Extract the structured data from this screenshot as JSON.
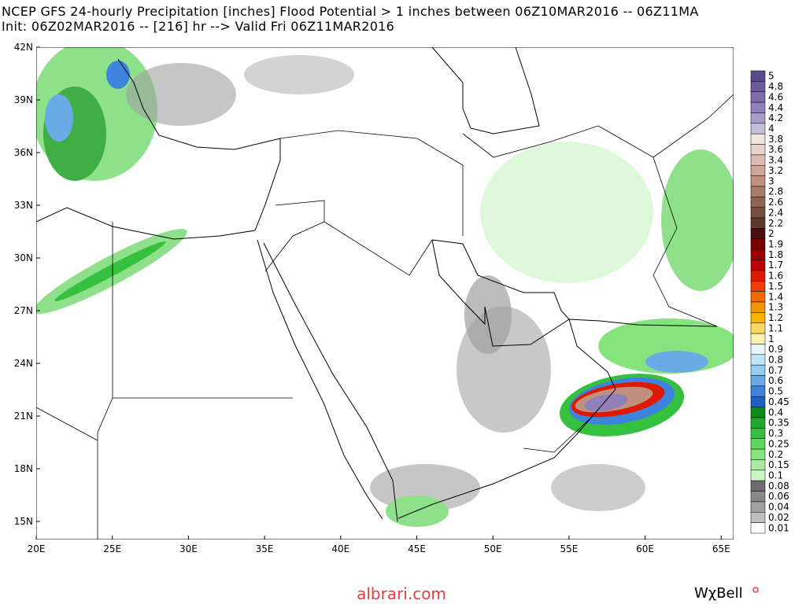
{
  "header": {
    "title": "NCEP GFS 24-hourly Precipitation [inches] Flood Potential > 1 inches between 06Z10MAR2016 -- 06Z11MA",
    "subtitle": "Init: 06Z02MAR2016 -- [216] hr --> Valid Fri 06Z11MAR2016"
  },
  "map": {
    "lat_labels": [
      "42N",
      "39N",
      "36N",
      "33N",
      "30N",
      "27N",
      "24N",
      "21N",
      "18N",
      "15N"
    ],
    "lon_labels": [
      "20E",
      "25E",
      "30E",
      "35E",
      "40E",
      "45E",
      "50E",
      "55E",
      "60E",
      "65E"
    ]
  },
  "colorbar": {
    "entries": [
      {
        "label": "5",
        "color": "#5a4a8a"
      },
      {
        "label": "4.8",
        "color": "#6b5b9a"
      },
      {
        "label": "4.6",
        "color": "#7d6eab"
      },
      {
        "label": "4.4",
        "color": "#9080bb"
      },
      {
        "label": "4.2",
        "color": "#a89ccb"
      },
      {
        "label": "4",
        "color": "#c4bcdc"
      },
      {
        "label": "3.8",
        "color": "#efe6e2"
      },
      {
        "label": "3.6",
        "color": "#e8d2c9"
      },
      {
        "label": "3.4",
        "color": "#dcbcb0"
      },
      {
        "label": "3.2",
        "color": "#cfa697"
      },
      {
        "label": "3",
        "color": "#c0907f"
      },
      {
        "label": "2.8",
        "color": "#a87a6a"
      },
      {
        "label": "2.6",
        "color": "#8f6455"
      },
      {
        "label": "2.4",
        "color": "#764e40"
      },
      {
        "label": "2.2",
        "color": "#5e3a2e"
      },
      {
        "label": "2",
        "color": "#4a0e0e"
      },
      {
        "label": "1.9",
        "color": "#7a0000"
      },
      {
        "label": "1.8",
        "color": "#9a0000"
      },
      {
        "label": "1.7",
        "color": "#bb0000"
      },
      {
        "label": "1.6",
        "color": "#dd1a00"
      },
      {
        "label": "1.5",
        "color": "#f03c00"
      },
      {
        "label": "1.4",
        "color": "#f06a00"
      },
      {
        "label": "1.3",
        "color": "#f49200"
      },
      {
        "label": "1.2",
        "color": "#f8b400"
      },
      {
        "label": "1.1",
        "color": "#fad860"
      },
      {
        "label": "1",
        "color": "#fdf3b0"
      },
      {
        "label": "0.9",
        "color": "#e6f6fa"
      },
      {
        "label": "0.8",
        "color": "#bfe6f4"
      },
      {
        "label": "0.7",
        "color": "#96cdee"
      },
      {
        "label": "0.6",
        "color": "#6aaae6"
      },
      {
        "label": "0.5",
        "color": "#3d85dc"
      },
      {
        "label": "0.45",
        "color": "#1f5fc8"
      },
      {
        "label": "0.4",
        "color": "#0a8a1a"
      },
      {
        "label": "0.35",
        "color": "#20a830"
      },
      {
        "label": "0.3",
        "color": "#36c040"
      },
      {
        "label": "0.25",
        "color": "#5cd65c"
      },
      {
        "label": "0.2",
        "color": "#86e47e"
      },
      {
        "label": "0.15",
        "color": "#a6eca0"
      },
      {
        "label": "0.1",
        "color": "#c8f5c0"
      },
      {
        "label": "0.08",
        "color": "#6c6c6c"
      },
      {
        "label": "0.06",
        "color": "#888888"
      },
      {
        "label": "0.04",
        "color": "#a0a0a0"
      },
      {
        "label": "0.02",
        "color": "#c0c0c0"
      },
      {
        "label": "0.01",
        "color": "#ffffff"
      }
    ]
  },
  "footer": {
    "source": "albrari.com",
    "brand": "WχBell"
  }
}
